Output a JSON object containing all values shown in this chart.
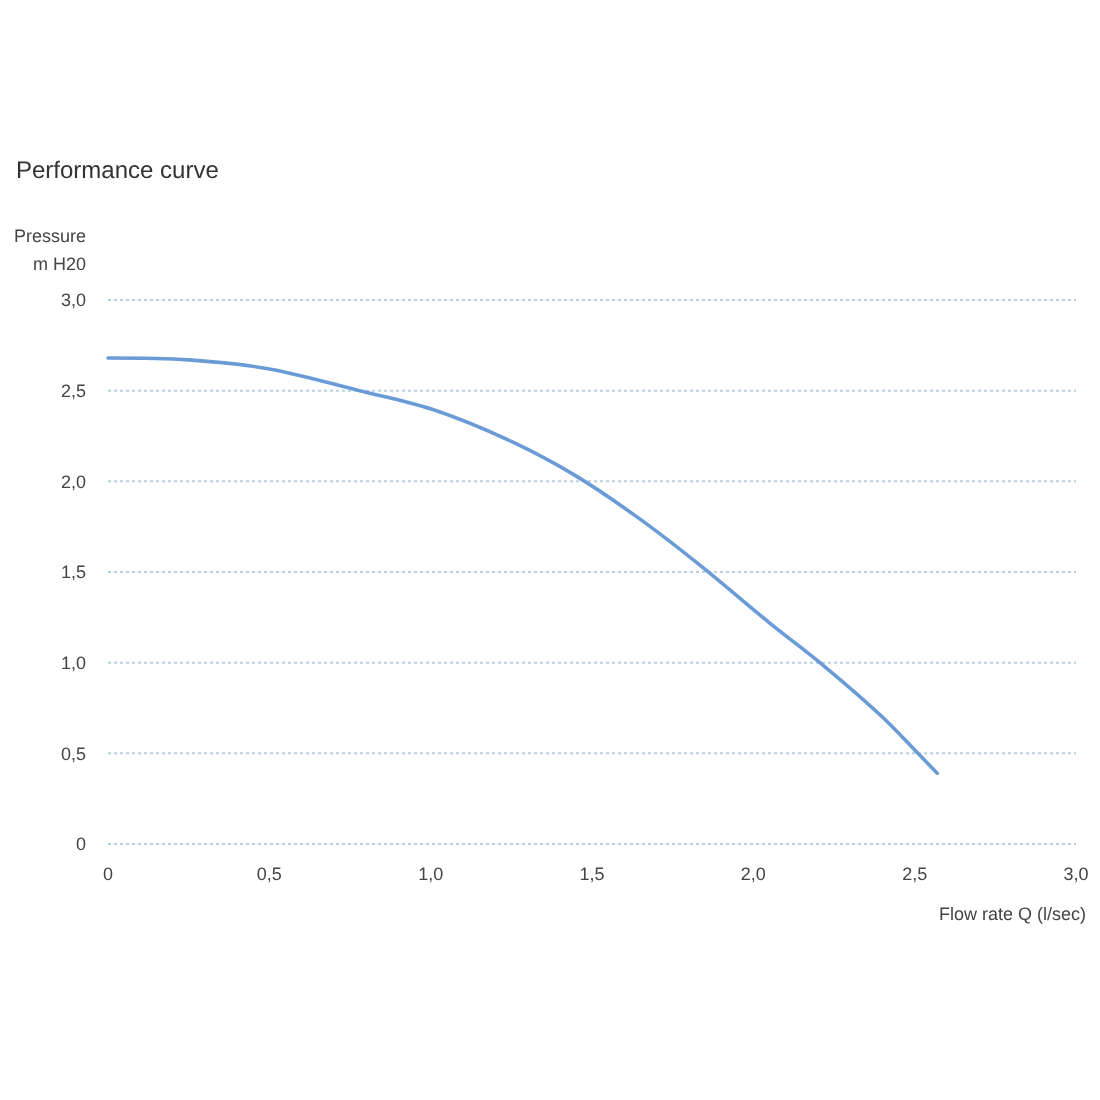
{
  "chart_data": {
    "type": "line",
    "title": "Performance curve",
    "ylabel": "Pressure\nm H20",
    "xlabel": "Flow rate Q (l/sec)",
    "x": [
      0,
      0.25,
      0.5,
      0.78,
      1.0,
      1.25,
      1.45,
      1.65,
      1.84,
      2.05,
      2.22,
      2.4,
      2.51,
      2.57
    ],
    "series": [
      {
        "color": "#6a9bd6",
        "values": [
          2.68,
          2.67,
          2.62,
          2.5,
          2.4,
          2.22,
          2.03,
          1.79,
          1.53,
          1.22,
          0.98,
          0.7,
          0.5,
          0.39
        ]
      }
    ],
    "xlim": [
      0,
      3
    ],
    "ylim": [
      0,
      3
    ],
    "xticks": [
      0,
      {
        "value": 0.5,
        "label": "0,5"
      },
      {
        "value": 1,
        "label": "1,0"
      },
      {
        "value": 1.5,
        "label": "1,5"
      },
      {
        "value": 2,
        "label": "2,0"
      },
      {
        "value": 2.5,
        "label": "2,5"
      },
      {
        "value": 3,
        "label": "3,0"
      }
    ],
    "yticks": [
      0,
      {
        "value": 0.5,
        "label": "0,5"
      },
      {
        "value": 1,
        "label": "1,0"
      },
      {
        "value": 1.5,
        "label": "1,5"
      },
      {
        "value": 2,
        "label": "2,0"
      },
      {
        "value": 2.5,
        "label": "2,5"
      },
      {
        "value": 3,
        "label": "3,0"
      }
    ],
    "grid": "y",
    "marker": "none",
    "line_style": "solid"
  }
}
